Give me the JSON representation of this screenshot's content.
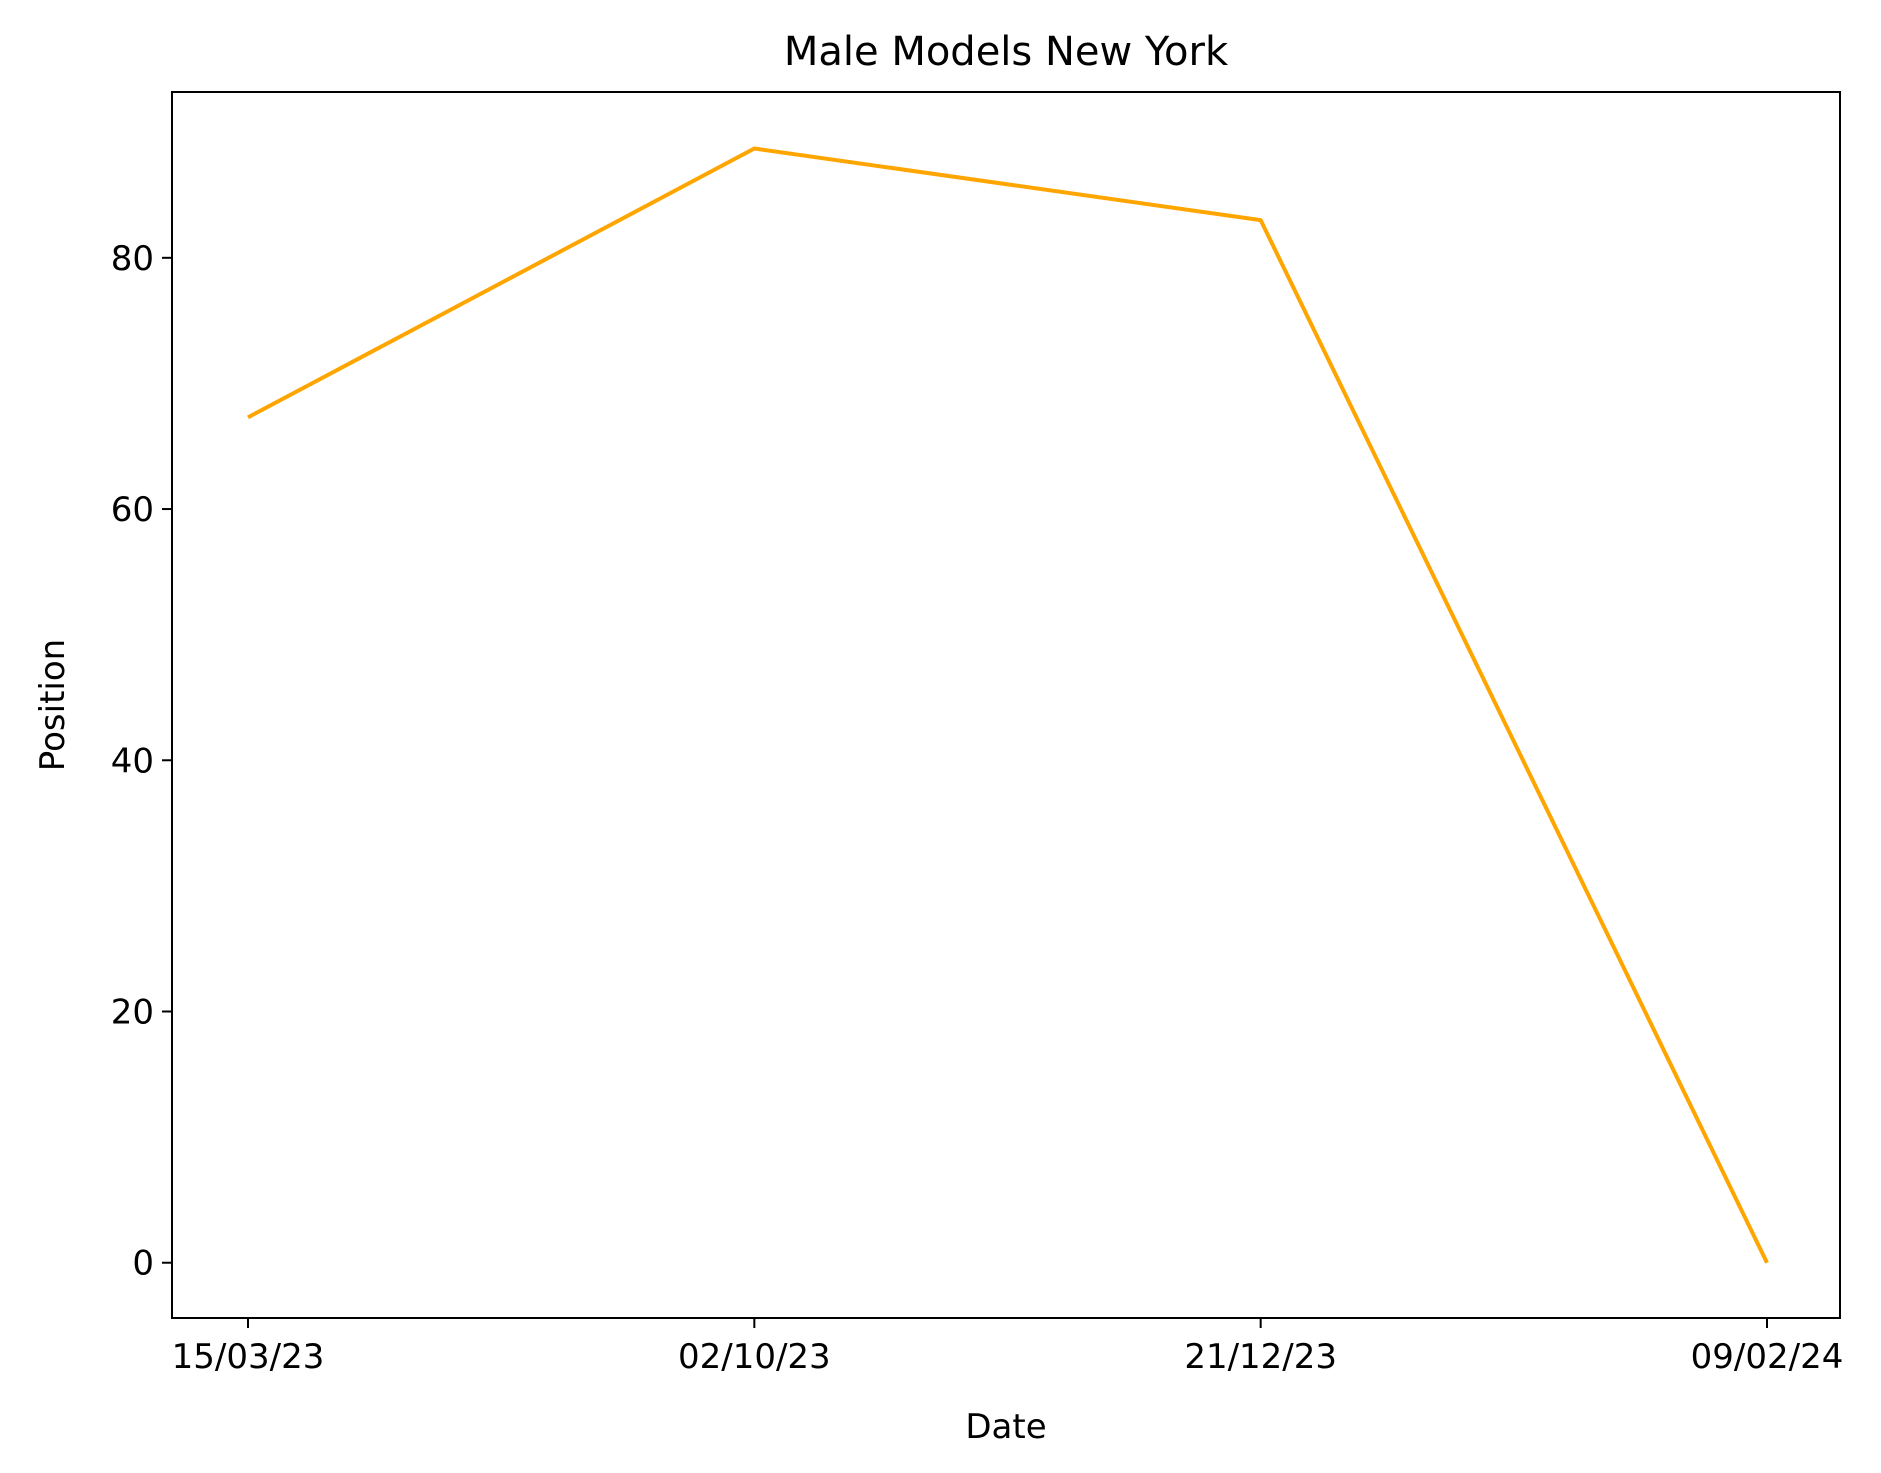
{
  "chart_data": {
    "type": "line",
    "title": "Male Models New York",
    "xlabel": "Date",
    "ylabel": "Position",
    "x": [
      "15/03/23",
      "02/10/23",
      "21/12/23",
      "09/02/24"
    ],
    "series": [
      {
        "values": [
          67.3,
          88.7,
          83.0,
          0
        ]
      }
    ],
    "xticks": [
      "15/03/23",
      "02/10/23",
      "21/12/23",
      "09/02/24"
    ],
    "yticks": [
      0,
      20,
      40,
      60,
      80
    ],
    "ylim": [
      -4.4,
      93.2
    ],
    "grid": false,
    "line_color": "#FFA500"
  }
}
